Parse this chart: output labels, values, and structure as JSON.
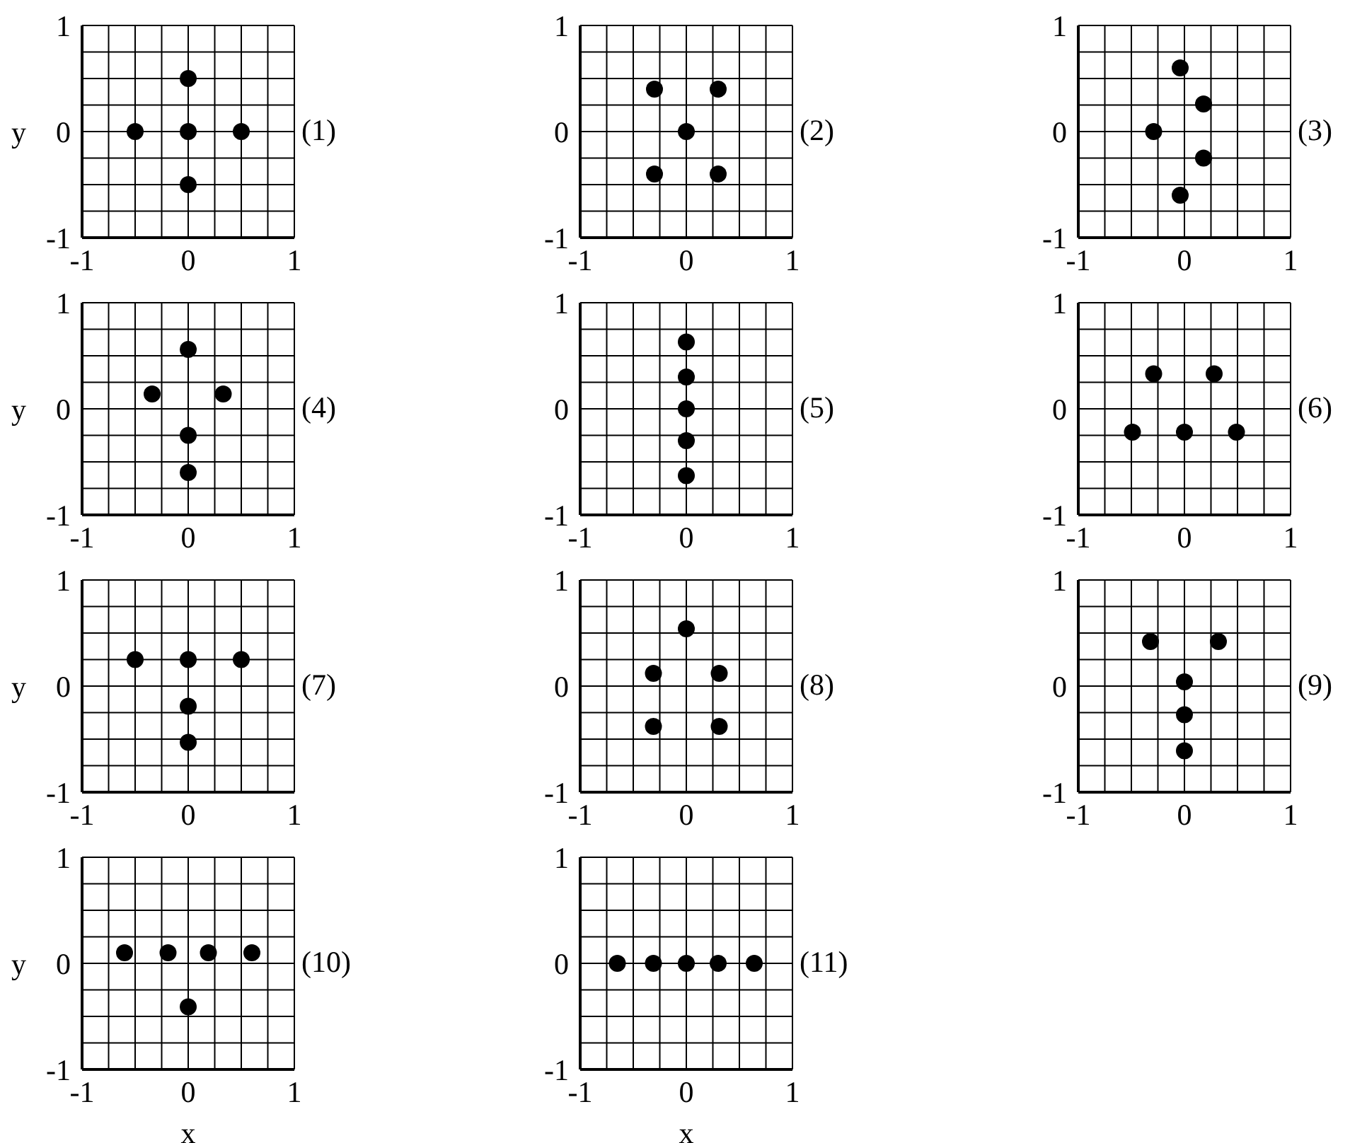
{
  "chart_data": [
    {
      "type": "scatter",
      "ylabel": "y",
      "annotations": [
        "(1)"
      ],
      "x": [
        -0.5,
        0,
        0.5,
        0,
        0
      ],
      "values": [
        0,
        0,
        0,
        0.5,
        -0.5
      ],
      "color": "#000000",
      "marker": "circle",
      "xlim": [
        -1,
        1
      ],
      "ylim": [
        -1,
        1
      ],
      "xticks": [
        -1,
        {
          "value": -0.75,
          "label": null
        },
        {
          "value": -0.5,
          "label": null
        },
        {
          "value": -0.25,
          "label": null
        },
        0,
        {
          "value": 0.25,
          "label": null
        },
        {
          "value": 0.5,
          "label": null
        },
        {
          "value": 0.75,
          "label": null
        },
        1
      ],
      "yticks": [
        -1,
        {
          "value": -0.75,
          "label": null
        },
        {
          "value": -0.5,
          "label": null
        },
        {
          "value": -0.25,
          "label": null
        },
        0,
        {
          "value": 0.25,
          "label": null
        },
        {
          "value": 0.5,
          "label": null
        },
        {
          "value": 0.75,
          "label": null
        },
        1
      ],
      "grid": true
    },
    {
      "type": "scatter",
      "annotations": [
        "(2)"
      ],
      "x": [
        -0.3,
        0.3,
        0,
        -0.3,
        0.3
      ],
      "values": [
        0.4,
        0.4,
        0,
        -0.4,
        -0.4
      ],
      "color": "#000000",
      "marker": "circle",
      "xlim": [
        -1,
        1
      ],
      "ylim": [
        -1,
        1
      ],
      "xticks": [
        -1,
        {
          "value": -0.75,
          "label": null
        },
        {
          "value": -0.5,
          "label": null
        },
        {
          "value": -0.25,
          "label": null
        },
        0,
        {
          "value": 0.25,
          "label": null
        },
        {
          "value": 0.5,
          "label": null
        },
        {
          "value": 0.75,
          "label": null
        },
        1
      ],
      "yticks": [
        -1,
        {
          "value": -0.75,
          "label": null
        },
        {
          "value": -0.5,
          "label": null
        },
        {
          "value": -0.25,
          "label": null
        },
        0,
        {
          "value": 0.25,
          "label": null
        },
        {
          "value": 0.5,
          "label": null
        },
        {
          "value": 0.75,
          "label": null
        },
        1
      ],
      "grid": true
    },
    {
      "type": "scatter",
      "annotations": [
        "(3)"
      ],
      "x": [
        -0.04,
        0.18,
        -0.29,
        0.18,
        -0.04
      ],
      "values": [
        0.6,
        0.26,
        0,
        -0.25,
        -0.6
      ],
      "color": "#000000",
      "marker": "circle",
      "xlim": [
        -1,
        1
      ],
      "ylim": [
        -1,
        1
      ],
      "xticks": [
        -1,
        {
          "value": -0.75,
          "label": null
        },
        {
          "value": -0.5,
          "label": null
        },
        {
          "value": -0.25,
          "label": null
        },
        0,
        {
          "value": 0.25,
          "label": null
        },
        {
          "value": 0.5,
          "label": null
        },
        {
          "value": 0.75,
          "label": null
        },
        1
      ],
      "yticks": [
        -1,
        {
          "value": -0.75,
          "label": null
        },
        {
          "value": -0.5,
          "label": null
        },
        {
          "value": -0.25,
          "label": null
        },
        0,
        {
          "value": 0.25,
          "label": null
        },
        {
          "value": 0.5,
          "label": null
        },
        {
          "value": 0.75,
          "label": null
        },
        1
      ],
      "grid": true
    },
    {
      "type": "scatter",
      "ylabel": "y",
      "annotations": [
        "(4)"
      ],
      "x": [
        0,
        -0.34,
        0.33,
        0,
        0
      ],
      "values": [
        0.56,
        0.14,
        0.14,
        -0.25,
        -0.6
      ],
      "color": "#000000",
      "marker": "circle",
      "xlim": [
        -1,
        1
      ],
      "ylim": [
        -1,
        1
      ],
      "xticks": [
        -1,
        {
          "value": -0.75,
          "label": null
        },
        {
          "value": -0.5,
          "label": null
        },
        {
          "value": -0.25,
          "label": null
        },
        0,
        {
          "value": 0.25,
          "label": null
        },
        {
          "value": 0.5,
          "label": null
        },
        {
          "value": 0.75,
          "label": null
        },
        1
      ],
      "yticks": [
        -1,
        {
          "value": -0.75,
          "label": null
        },
        {
          "value": -0.5,
          "label": null
        },
        {
          "value": -0.25,
          "label": null
        },
        0,
        {
          "value": 0.25,
          "label": null
        },
        {
          "value": 0.5,
          "label": null
        },
        {
          "value": 0.75,
          "label": null
        },
        1
      ],
      "grid": true
    },
    {
      "type": "scatter",
      "annotations": [
        "(5)"
      ],
      "x": [
        0,
        0,
        0,
        0,
        0
      ],
      "values": [
        0.63,
        0.3,
        0,
        -0.3,
        -0.63
      ],
      "color": "#000000",
      "marker": "circle",
      "xlim": [
        -1,
        1
      ],
      "ylim": [
        -1,
        1
      ],
      "xticks": [
        -1,
        {
          "value": -0.75,
          "label": null
        },
        {
          "value": -0.5,
          "label": null
        },
        {
          "value": -0.25,
          "label": null
        },
        0,
        {
          "value": 0.25,
          "label": null
        },
        {
          "value": 0.5,
          "label": null
        },
        {
          "value": 0.75,
          "label": null
        },
        1
      ],
      "yticks": [
        -1,
        {
          "value": -0.75,
          "label": null
        },
        {
          "value": -0.5,
          "label": null
        },
        {
          "value": -0.25,
          "label": null
        },
        0,
        {
          "value": 0.25,
          "label": null
        },
        {
          "value": 0.5,
          "label": null
        },
        {
          "value": 0.75,
          "label": null
        },
        1
      ],
      "grid": true
    },
    {
      "type": "scatter",
      "annotations": [
        "(6)"
      ],
      "x": [
        -0.29,
        0.28,
        -0.49,
        0,
        0.49
      ],
      "values": [
        0.33,
        0.33,
        -0.22,
        -0.22,
        -0.22
      ],
      "color": "#000000",
      "marker": "circle",
      "xlim": [
        -1,
        1
      ],
      "ylim": [
        -1,
        1
      ],
      "xticks": [
        -1,
        {
          "value": -0.75,
          "label": null
        },
        {
          "value": -0.5,
          "label": null
        },
        {
          "value": -0.25,
          "label": null
        },
        0,
        {
          "value": 0.25,
          "label": null
        },
        {
          "value": 0.5,
          "label": null
        },
        {
          "value": 0.75,
          "label": null
        },
        1
      ],
      "yticks": [
        -1,
        {
          "value": -0.75,
          "label": null
        },
        {
          "value": -0.5,
          "label": null
        },
        {
          "value": -0.25,
          "label": null
        },
        0,
        {
          "value": 0.25,
          "label": null
        },
        {
          "value": 0.5,
          "label": null
        },
        {
          "value": 0.75,
          "label": null
        },
        1
      ],
      "grid": true
    },
    {
      "type": "scatter",
      "ylabel": "y",
      "annotations": [
        "(7)"
      ],
      "x": [
        -0.5,
        0,
        0.5,
        0,
        0
      ],
      "values": [
        0.25,
        0.25,
        0.25,
        -0.19,
        -0.53
      ],
      "color": "#000000",
      "marker": "circle",
      "xlim": [
        -1,
        1
      ],
      "ylim": [
        -1,
        1
      ],
      "xticks": [
        -1,
        {
          "value": -0.75,
          "label": null
        },
        {
          "value": -0.5,
          "label": null
        },
        {
          "value": -0.25,
          "label": null
        },
        0,
        {
          "value": 0.25,
          "label": null
        },
        {
          "value": 0.5,
          "label": null
        },
        {
          "value": 0.75,
          "label": null
        },
        1
      ],
      "yticks": [
        -1,
        {
          "value": -0.75,
          "label": null
        },
        {
          "value": -0.5,
          "label": null
        },
        {
          "value": -0.25,
          "label": null
        },
        0,
        {
          "value": 0.25,
          "label": null
        },
        {
          "value": 0.5,
          "label": null
        },
        {
          "value": 0.75,
          "label": null
        },
        1
      ],
      "grid": true
    },
    {
      "type": "scatter",
      "annotations": [
        "(8)"
      ],
      "x": [
        0,
        -0.31,
        0.31,
        -0.31,
        0.31
      ],
      "values": [
        0.54,
        0.12,
        0.12,
        -0.38,
        -0.38
      ],
      "color": "#000000",
      "marker": "circle",
      "xlim": [
        -1,
        1
      ],
      "ylim": [
        -1,
        1
      ],
      "xticks": [
        -1,
        {
          "value": -0.75,
          "label": null
        },
        {
          "value": -0.5,
          "label": null
        },
        {
          "value": -0.25,
          "label": null
        },
        0,
        {
          "value": 0.25,
          "label": null
        },
        {
          "value": 0.5,
          "label": null
        },
        {
          "value": 0.75,
          "label": null
        },
        1
      ],
      "yticks": [
        -1,
        {
          "value": -0.75,
          "label": null
        },
        {
          "value": -0.5,
          "label": null
        },
        {
          "value": -0.25,
          "label": null
        },
        0,
        {
          "value": 0.25,
          "label": null
        },
        {
          "value": 0.5,
          "label": null
        },
        {
          "value": 0.75,
          "label": null
        },
        1
      ],
      "grid": true
    },
    {
      "type": "scatter",
      "annotations": [
        "(9)"
      ],
      "x": [
        -0.32,
        0.32,
        0,
        0,
        0
      ],
      "values": [
        0.42,
        0.42,
        0.04,
        -0.27,
        -0.61
      ],
      "color": "#000000",
      "marker": "circle",
      "xlim": [
        -1,
        1
      ],
      "ylim": [
        -1,
        1
      ],
      "xticks": [
        -1,
        {
          "value": -0.75,
          "label": null
        },
        {
          "value": -0.5,
          "label": null
        },
        {
          "value": -0.25,
          "label": null
        },
        0,
        {
          "value": 0.25,
          "label": null
        },
        {
          "value": 0.5,
          "label": null
        },
        {
          "value": 0.75,
          "label": null
        },
        1
      ],
      "yticks": [
        -1,
        {
          "value": -0.75,
          "label": null
        },
        {
          "value": -0.5,
          "label": null
        },
        {
          "value": -0.25,
          "label": null
        },
        0,
        {
          "value": 0.25,
          "label": null
        },
        {
          "value": 0.5,
          "label": null
        },
        {
          "value": 0.75,
          "label": null
        },
        1
      ],
      "grid": true
    },
    {
      "type": "scatter",
      "xlabel": "x",
      "ylabel": "y",
      "annotations": [
        "(10)"
      ],
      "x": [
        -0.6,
        -0.19,
        0.19,
        0.6,
        0
      ],
      "values": [
        0.1,
        0.1,
        0.1,
        0.1,
        -0.41
      ],
      "color": "#000000",
      "marker": "circle",
      "xlim": [
        -1,
        1
      ],
      "ylim": [
        -1,
        1
      ],
      "xticks": [
        -1,
        {
          "value": -0.75,
          "label": null
        },
        {
          "value": -0.5,
          "label": null
        },
        {
          "value": -0.25,
          "label": null
        },
        0,
        {
          "value": 0.25,
          "label": null
        },
        {
          "value": 0.5,
          "label": null
        },
        {
          "value": 0.75,
          "label": null
        },
        1
      ],
      "yticks": [
        -1,
        {
          "value": -0.75,
          "label": null
        },
        {
          "value": -0.5,
          "label": null
        },
        {
          "value": -0.25,
          "label": null
        },
        0,
        {
          "value": 0.25,
          "label": null
        },
        {
          "value": 0.5,
          "label": null
        },
        {
          "value": 0.75,
          "label": null
        },
        1
      ],
      "grid": true
    },
    {
      "type": "scatter",
      "xlabel": "x",
      "annotations": [
        "(11)"
      ],
      "x": [
        -0.65,
        -0.31,
        0,
        0.3,
        0.64
      ],
      "values": [
        0,
        0,
        0,
        0,
        0
      ],
      "color": "#000000",
      "marker": "circle",
      "xlim": [
        -1,
        1
      ],
      "ylim": [
        -1,
        1
      ],
      "xticks": [
        -1,
        {
          "value": -0.75,
          "label": null
        },
        {
          "value": -0.5,
          "label": null
        },
        {
          "value": -0.25,
          "label": null
        },
        0,
        {
          "value": 0.25,
          "label": null
        },
        {
          "value": 0.5,
          "label": null
        },
        {
          "value": 0.75,
          "label": null
        },
        1
      ],
      "yticks": [
        -1,
        {
          "value": -0.75,
          "label": null
        },
        {
          "value": -0.5,
          "label": null
        },
        {
          "value": -0.25,
          "label": null
        },
        0,
        {
          "value": 0.25,
          "label": null
        },
        {
          "value": 0.5,
          "label": null
        },
        {
          "value": 0.75,
          "label": null
        },
        1
      ],
      "grid": true
    }
  ]
}
